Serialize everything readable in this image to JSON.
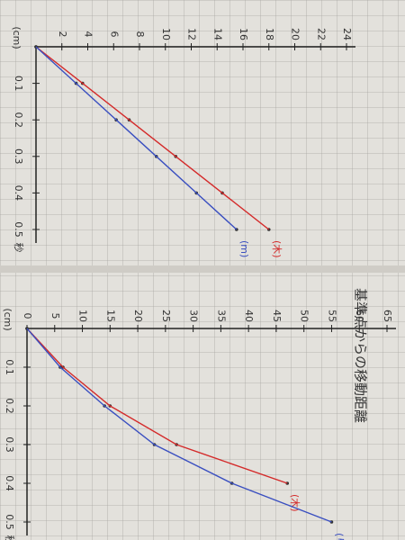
{
  "chart_data": [
    {
      "type": "line",
      "y_label": "(cm)",
      "x_label": "秒",
      "x": [
        0,
        0.1,
        0.2,
        0.3,
        0.4,
        0.5
      ],
      "xlim": [
        0,
        0.5
      ],
      "xticks": [
        0.1,
        0.2,
        0.3,
        0.4,
        0.5
      ],
      "ylim": [
        0,
        24
      ],
      "yticks": [
        2,
        4,
        6,
        8,
        10,
        12,
        14,
        16,
        18,
        20,
        22,
        24
      ],
      "series": [
        {
          "name": "(木)",
          "color": "#d42a2a",
          "values": [
            0,
            3.6,
            7.2,
            10.8,
            14.4,
            18
          ]
        },
        {
          "name": "(m)",
          "color": "#3a4fc0",
          "values": [
            0,
            3.1,
            6.2,
            9.3,
            12.4,
            15.5
          ]
        }
      ]
    },
    {
      "type": "line",
      "title": "基準点からの移動距離",
      "y_label": "(cm)",
      "x_label": "秒",
      "x": [
        0,
        0.1,
        0.2,
        0.3,
        0.4,
        0.5
      ],
      "xlim": [
        0,
        0.5
      ],
      "xticks": [
        0.1,
        0.2,
        0.3,
        0.4,
        0.5
      ],
      "ylim": [
        0,
        65
      ],
      "yticks": [
        0,
        5,
        10,
        15,
        20,
        25,
        30,
        35,
        40,
        45,
        50,
        55,
        60,
        65
      ],
      "series": [
        {
          "name": "(木)",
          "color": "#d42a2a",
          "values": [
            0,
            6.5,
            15,
            27,
            47,
            null
          ]
        },
        {
          "name": "(りん)",
          "color": "#3a4fc0",
          "values": [
            0,
            6,
            14,
            23,
            37,
            55
          ]
        }
      ]
    }
  ]
}
